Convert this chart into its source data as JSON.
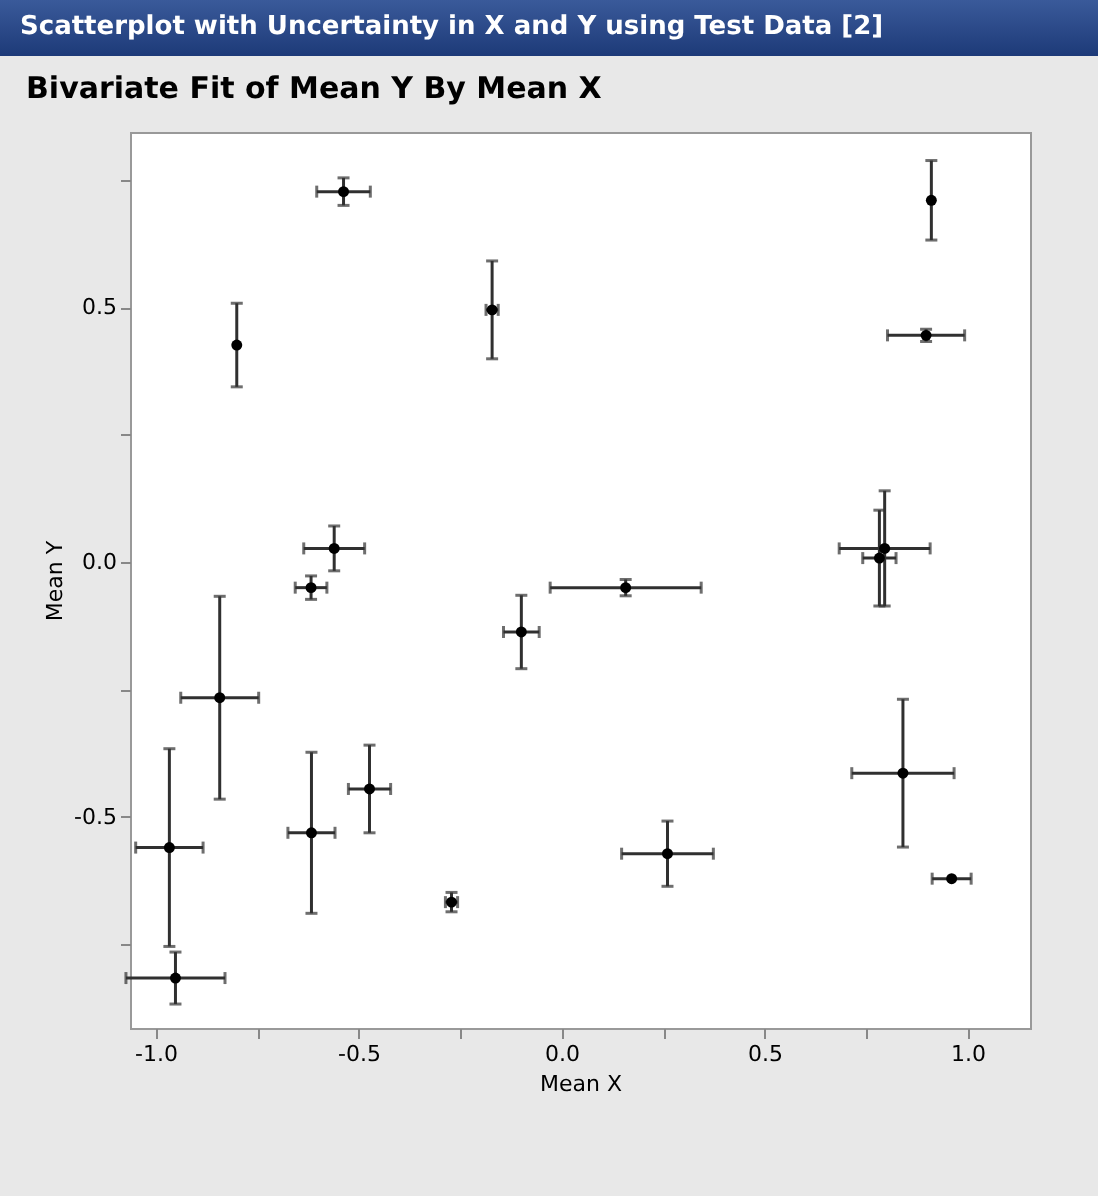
{
  "chart_data": {
    "type": "scatter",
    "title": "Bivariate Fit of Mean Y By Mean X",
    "xlabel": "Mean X",
    "ylabel": "Mean Y",
    "annotations": [
      "Scatterplot with Uncertainty in X and Y using Test Data [2]"
    ],
    "x": [
      -0.537,
      -0.8,
      -0.171,
      -0.56,
      -0.617,
      0.911,
      0.898,
      0.796,
      0.783,
      0.158,
      -0.099,
      -0.842,
      -0.473,
      -0.616,
      -0.966,
      -0.271,
      -0.951,
      0.261,
      0.841,
      0.961
    ],
    "values": [
      0.727,
      0.426,
      0.495,
      0.027,
      -0.05,
      0.71,
      0.445,
      0.027,
      0.008,
      -0.05,
      -0.137,
      -0.266,
      -0.445,
      -0.531,
      -0.56,
      -0.667,
      -0.816,
      -0.572,
      -0.414,
      -0.621
    ],
    "errors": [
      0.027,
      0.082,
      0.096,
      0.044,
      0.023,
      0.078,
      0.012,
      0.113,
      0.094,
      0.016,
      0.072,
      0.199,
      0.086,
      0.158,
      0.194,
      0.019,
      0.051,
      0.064,
      0.145,
      null
    ],
    "xerrors": [
      0.066,
      null,
      0.015,
      0.075,
      0.039,
      null,
      0.095,
      0.112,
      0.041,
      0.186,
      0.044,
      0.096,
      0.052,
      0.058,
      0.083,
      0.015,
      0.122,
      0.113,
      0.126,
      0.048
    ],
    "color": "#000000",
    "marker": "circle",
    "grid": false,
    "xlim": [
      -1.063,
      1.154
    ],
    "ylim": [
      -0.914,
      0.844
    ],
    "xticks": [
      {
        "value": -1,
        "label": "-1.0"
      },
      {
        "value": -0.75,
        "label": null
      },
      {
        "value": -0.5,
        "label": "-0.5"
      },
      {
        "value": -0.25,
        "label": null
      },
      {
        "value": 0,
        "label": "0.0"
      },
      {
        "value": 0.25,
        "label": null
      },
      {
        "value": 0.5,
        "label": "0.5"
      },
      {
        "value": 0.75,
        "label": null
      },
      {
        "value": 1,
        "label": "1.0"
      }
    ],
    "yticks": [
      {
        "value": -0.75,
        "label": null
      },
      {
        "value": -0.5,
        "label": "-0.5"
      },
      {
        "value": -0.25,
        "label": null
      },
      {
        "value": 0,
        "label": "0.0"
      },
      {
        "value": 0.25,
        "label": null
      },
      {
        "value": 0.5,
        "label": "0.5"
      },
      {
        "value": 0.75,
        "label": null
      }
    ]
  }
}
